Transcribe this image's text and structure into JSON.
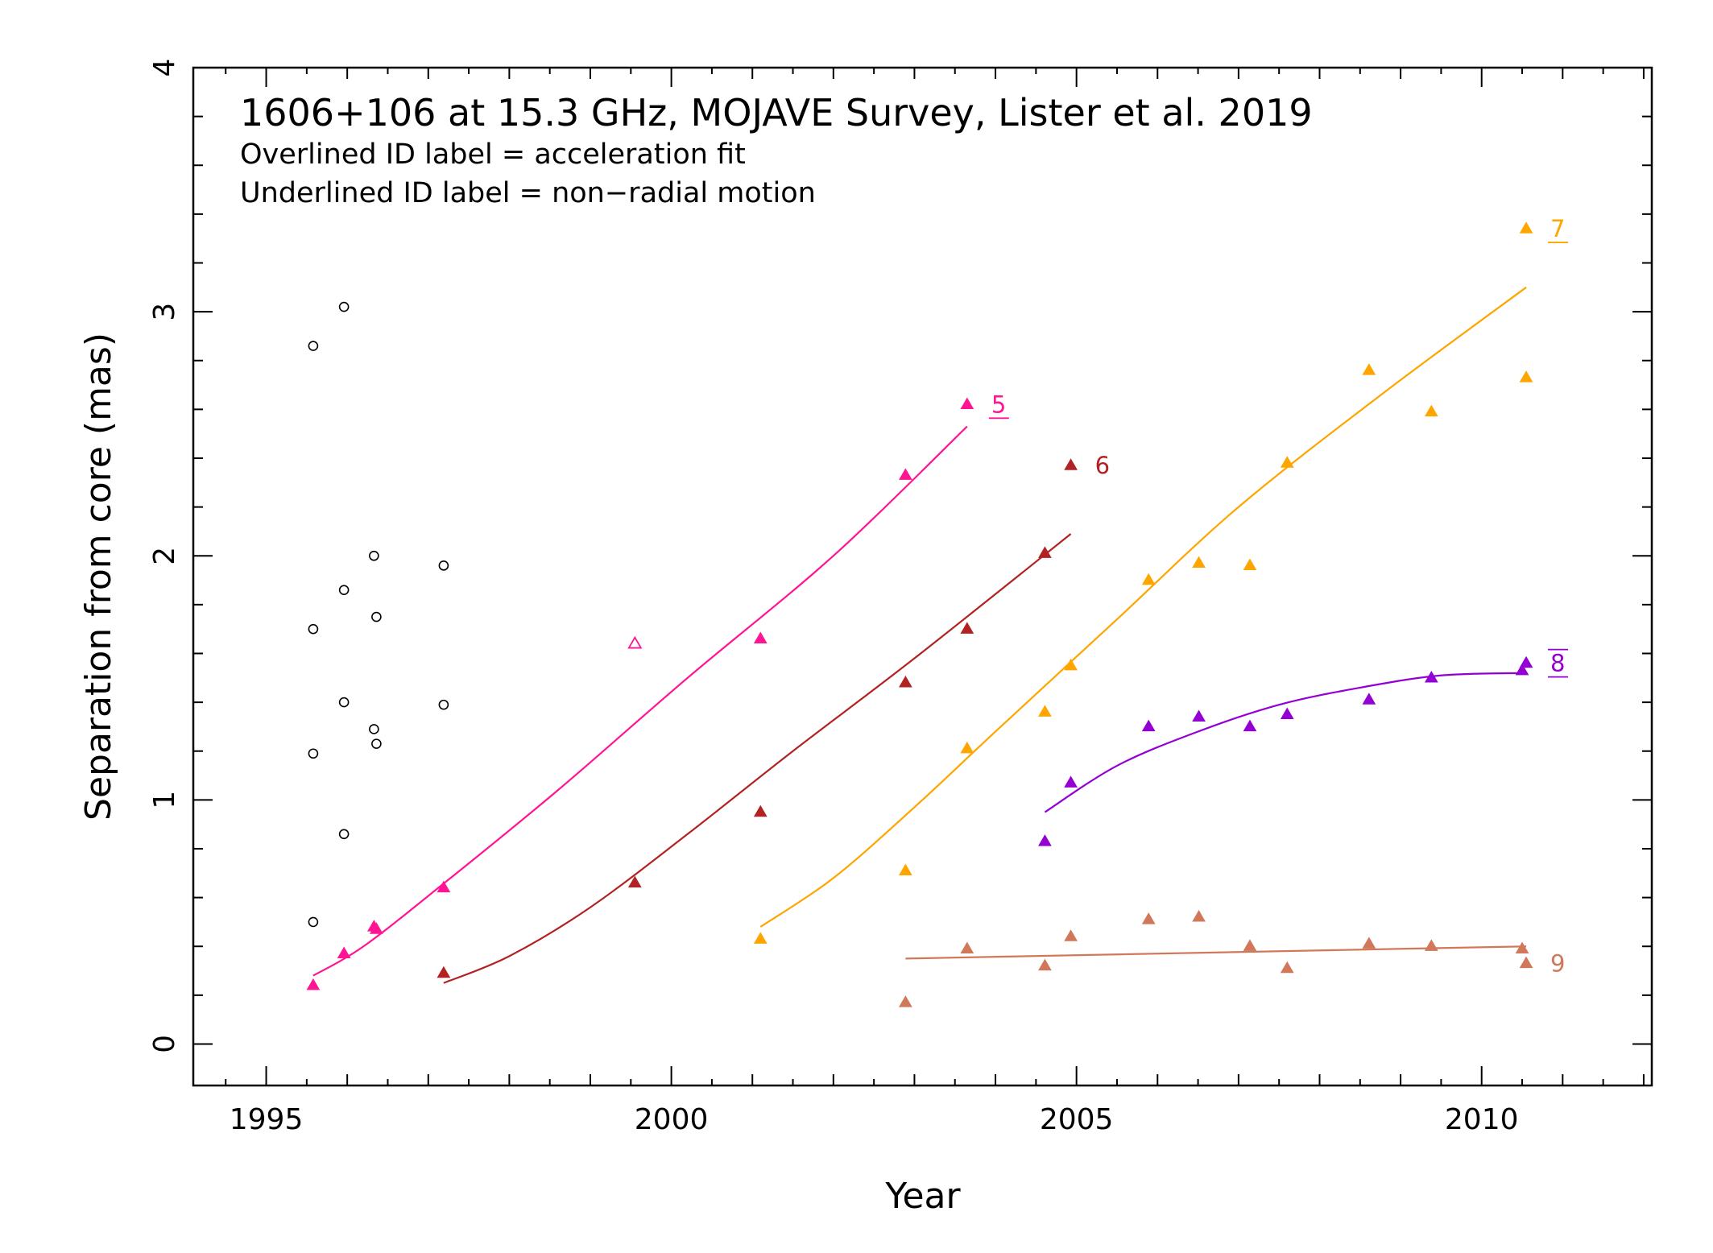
{
  "chart_data": {
    "type": "scatter",
    "title": "1606+106 at 15.3 GHz, MOJAVE Survey, Lister et al. 2019",
    "notes": [
      "Overlined ID label = acceleration fit",
      "Underlined ID label = non−radial motion"
    ],
    "xlabel": "Year",
    "ylabel": "Separation from core (mas)",
    "xlim": [
      1994.1,
      2012.1
    ],
    "ylim": [
      -0.17,
      4.0
    ],
    "xticks": [
      "1995",
      "2000",
      "2005",
      "2010"
    ],
    "yticks": [
      "0",
      "1",
      "2",
      "3",
      "4"
    ],
    "grid": false,
    "unidentified": {
      "color": "#000000",
      "marker": "open-circle",
      "points": [
        [
          1995.58,
          2.86
        ],
        [
          1995.58,
          1.7
        ],
        [
          1995.58,
          1.19
        ],
        [
          1995.58,
          0.5
        ],
        [
          1995.96,
          3.02
        ],
        [
          1995.96,
          1.86
        ],
        [
          1995.96,
          1.4
        ],
        [
          1995.96,
          0.86
        ],
        [
          1996.33,
          2.0
        ],
        [
          1996.36,
          1.75
        ],
        [
          1996.33,
          1.29
        ],
        [
          1996.36,
          1.23
        ],
        [
          1997.19,
          1.96
        ],
        [
          1997.19,
          1.39
        ]
      ]
    },
    "series": [
      {
        "name": "5",
        "color": "#ff1493",
        "label_style": "underline",
        "points": [
          [
            1995.58,
            0.24
          ],
          [
            1995.96,
            0.37
          ],
          [
            1996.33,
            0.48
          ],
          [
            1996.36,
            0.47
          ],
          [
            1997.19,
            0.64
          ],
          [
            2001.1,
            1.66
          ],
          [
            2002.89,
            2.33
          ],
          [
            2003.65,
            2.62
          ]
        ],
        "open_points": [
          [
            1999.55,
            1.64
          ]
        ],
        "fit": [
          [
            1995.58,
            0.28
          ],
          [
            1996.2,
            0.4
          ],
          [
            1997.2,
            0.66
          ],
          [
            1998.6,
            1.04
          ],
          [
            2000.2,
            1.5
          ],
          [
            2002.0,
            2.0
          ],
          [
            2003.65,
            2.53
          ]
        ]
      },
      {
        "name": "6",
        "color": "#b22222",
        "label_style": "plain",
        "points": [
          [
            1997.19,
            0.29
          ],
          [
            1999.55,
            0.66
          ],
          [
            2001.1,
            0.95
          ],
          [
            2002.89,
            1.48
          ],
          [
            2003.65,
            1.7
          ],
          [
            2004.61,
            2.01
          ],
          [
            2004.93,
            2.37
          ]
        ],
        "fit": [
          [
            1997.19,
            0.25
          ],
          [
            1998.0,
            0.36
          ],
          [
            1999.0,
            0.56
          ],
          [
            2000.2,
            0.86
          ],
          [
            2001.5,
            1.2
          ],
          [
            2003.0,
            1.58
          ],
          [
            2004.93,
            2.09
          ]
        ]
      },
      {
        "name": "7",
        "color": "#ffa500",
        "label_style": "underline",
        "points": [
          [
            2001.1,
            0.43
          ],
          [
            2002.89,
            0.71
          ],
          [
            2003.65,
            1.21
          ],
          [
            2004.61,
            1.36
          ],
          [
            2004.93,
            1.55
          ],
          [
            2005.89,
            1.9
          ],
          [
            2006.51,
            1.97
          ],
          [
            2007.14,
            1.96
          ],
          [
            2007.6,
            2.38
          ],
          [
            2008.61,
            2.76
          ],
          [
            2009.38,
            2.59
          ],
          [
            2010.55,
            2.73
          ],
          [
            2010.55,
            3.34
          ]
        ],
        "fit": [
          [
            2001.1,
            0.48
          ],
          [
            2002.0,
            0.68
          ],
          [
            2003.0,
            0.97
          ],
          [
            2004.0,
            1.28
          ],
          [
            2005.5,
            1.74
          ],
          [
            2007.0,
            2.2
          ],
          [
            2008.8,
            2.67
          ],
          [
            2010.55,
            3.1
          ]
        ]
      },
      {
        "name": "8",
        "color": "#9400d3",
        "label_style": "overline-underline",
        "points": [
          [
            2004.61,
            0.83
          ],
          [
            2004.93,
            1.07
          ],
          [
            2005.89,
            1.3
          ],
          [
            2006.51,
            1.34
          ],
          [
            2007.14,
            1.3
          ],
          [
            2007.6,
            1.35
          ],
          [
            2008.61,
            1.41
          ],
          [
            2009.38,
            1.5
          ],
          [
            2010.5,
            1.53
          ],
          [
            2010.55,
            1.56
          ]
        ],
        "fit": [
          [
            2004.61,
            0.95
          ],
          [
            2005.5,
            1.14
          ],
          [
            2006.5,
            1.28
          ],
          [
            2007.5,
            1.39
          ],
          [
            2008.5,
            1.46
          ],
          [
            2009.5,
            1.51
          ],
          [
            2010.55,
            1.52
          ]
        ]
      },
      {
        "name": "9",
        "color": "#d2785a",
        "label_style": "plain",
        "points": [
          [
            2002.89,
            0.17
          ],
          [
            2003.65,
            0.39
          ],
          [
            2004.61,
            0.32
          ],
          [
            2004.93,
            0.44
          ],
          [
            2005.89,
            0.51
          ],
          [
            2006.51,
            0.52
          ],
          [
            2007.14,
            0.4
          ],
          [
            2007.6,
            0.31
          ],
          [
            2008.61,
            0.41
          ],
          [
            2009.38,
            0.4
          ],
          [
            2010.5,
            0.39
          ],
          [
            2010.55,
            0.33
          ]
        ],
        "fit": [
          [
            2002.89,
            0.35
          ],
          [
            2010.55,
            0.4
          ]
        ]
      }
    ]
  }
}
